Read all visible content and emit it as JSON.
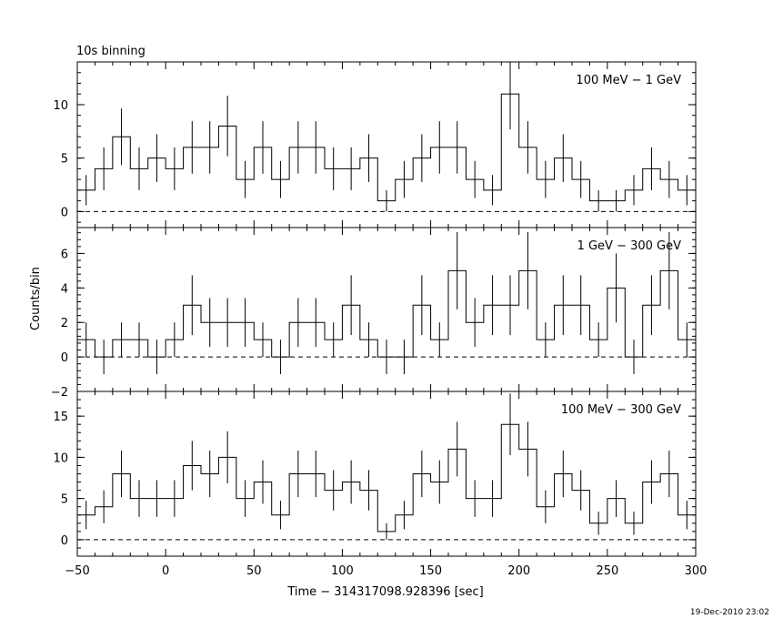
{
  "figure": {
    "title": "10s binning",
    "ylabel": "Counts/bin",
    "xlabel": "Time − 314317098.928396 [sec]",
    "timestamp": "19-Dec-2010 23:02"
  },
  "chart_data": [
    {
      "type": "line",
      "label": "100 MeV − 1 GeV",
      "xlim": [
        -50,
        300
      ],
      "ylim": [
        -1.5,
        14
      ],
      "yticks": [
        0,
        5,
        10
      ],
      "ytick_labels": [
        "0",
        "5",
        "10"
      ],
      "bin_width": 10,
      "x": [
        -45,
        -35,
        -25,
        -15,
        -5,
        5,
        15,
        25,
        35,
        45,
        55,
        65,
        75,
        85,
        95,
        105,
        115,
        125,
        135,
        145,
        155,
        165,
        175,
        185,
        195,
        205,
        215,
        225,
        235,
        245,
        255,
        265,
        275,
        285,
        295
      ],
      "values": [
        2,
        4,
        7,
        4,
        5,
        4,
        6,
        6,
        8,
        3,
        6,
        3,
        6,
        6,
        4,
        4,
        5,
        1,
        3,
        5,
        6,
        6,
        3,
        2,
        11,
        6,
        3,
        5,
        3,
        1,
        1,
        2,
        4,
        3,
        2
      ]
    },
    {
      "type": "line",
      "label": "1 GeV − 300 GeV",
      "xlim": [
        -50,
        300
      ],
      "ylim": [
        -2,
        7.5
      ],
      "yticks": [
        -2,
        0,
        2,
        4,
        6
      ],
      "ytick_labels": [
        "−2",
        "0",
        "2",
        "4",
        "6"
      ],
      "bin_width": 10,
      "x": [
        -45,
        -35,
        -25,
        -15,
        -5,
        5,
        15,
        25,
        35,
        45,
        55,
        65,
        75,
        85,
        95,
        105,
        115,
        125,
        135,
        145,
        155,
        165,
        175,
        185,
        195,
        205,
        215,
        225,
        235,
        245,
        255,
        265,
        275,
        285,
        295
      ],
      "values": [
        1,
        0,
        1,
        1,
        0,
        1,
        3,
        2,
        2,
        2,
        1,
        0,
        2,
        2,
        1,
        3,
        1,
        0,
        0,
        3,
        1,
        5,
        2,
        3,
        3,
        5,
        1,
        3,
        3,
        1,
        4,
        0,
        3,
        5,
        1
      ]
    },
    {
      "type": "line",
      "label": "100 MeV − 300 GeV",
      "xlim": [
        -50,
        300
      ],
      "ylim": [
        -2,
        18
      ],
      "yticks": [
        0,
        5,
        10,
        15
      ],
      "ytick_labels": [
        "0",
        "5",
        "10",
        "15"
      ],
      "bin_width": 10,
      "x": [
        -45,
        -35,
        -25,
        -15,
        -5,
        5,
        15,
        25,
        35,
        45,
        55,
        65,
        75,
        85,
        95,
        105,
        115,
        125,
        135,
        145,
        155,
        165,
        175,
        185,
        195,
        205,
        215,
        225,
        235,
        245,
        255,
        265,
        275,
        285,
        295
      ],
      "values": [
        3,
        4,
        8,
        5,
        5,
        5,
        9,
        8,
        10,
        5,
        7,
        3,
        8,
        8,
        6,
        7,
        6,
        1,
        3,
        8,
        7,
        11,
        5,
        5,
        14,
        11,
        4,
        8,
        6,
        2,
        5,
        2,
        7,
        8,
        3
      ],
      "xticks": [
        -50,
        0,
        50,
        100,
        150,
        200,
        250,
        300
      ],
      "xtick_labels": [
        "−50",
        "0",
        "50",
        "100",
        "150",
        "200",
        "250",
        "300"
      ]
    }
  ]
}
